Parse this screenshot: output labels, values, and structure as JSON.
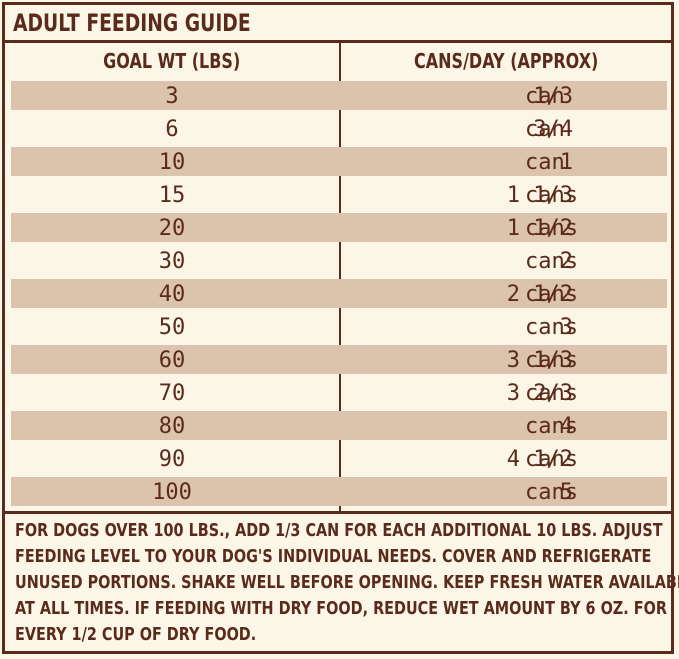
{
  "title": "ADULT FEEDING GUIDE",
  "headers": {
    "weight": "GOAL WT (LBS)",
    "cans": "CANS/DAY (APPROX)"
  },
  "rows": [
    {
      "weight": "3",
      "amount": "1/3",
      "unit": "can"
    },
    {
      "weight": "6",
      "amount": "3/4",
      "unit": "can"
    },
    {
      "weight": "10",
      "amount": "1",
      "unit": "can"
    },
    {
      "weight": "15",
      "amount": "1 1/3",
      "unit": "cans"
    },
    {
      "weight": "20",
      "amount": "1 1/2",
      "unit": "cans"
    },
    {
      "weight": "30",
      "amount": "2",
      "unit": "cans"
    },
    {
      "weight": "40",
      "amount": "2 1/2",
      "unit": "cans"
    },
    {
      "weight": "50",
      "amount": "3",
      "unit": "cans"
    },
    {
      "weight": "60",
      "amount": "3 1/3",
      "unit": "cans"
    },
    {
      "weight": "70",
      "amount": "3 2/3",
      "unit": "cans"
    },
    {
      "weight": "80",
      "amount": "4",
      "unit": "cans"
    },
    {
      "weight": "90",
      "amount": "4 1/2",
      "unit": "cans"
    },
    {
      "weight": "100",
      "amount": "5",
      "unit": "cans"
    }
  ],
  "notes": [
    "FOR DOGS OVER 100 LBS., ADD 1/3 CAN FOR EACH ADDITIONAL 10 LBS. ADJUST",
    "FEEDING LEVEL TO YOUR DOG'S INDIVIDUAL NEEDS. COVER AND REFRIGERATE",
    "UNUSED PORTIONS. SHAKE WELL BEFORE OPENING. KEEP FRESH WATER AVAILABLE",
    "AT ALL TIMES. IF FEEDING WITH DRY FOOD, REDUCE WET AMOUNT BY 6 OZ. FOR",
    "EVERY 1/2 CUP OF DRY FOOD."
  ],
  "colors": {
    "text": "#5a2a1c",
    "background": "#fbf6e6",
    "row_shade": "#dcc3ad"
  }
}
